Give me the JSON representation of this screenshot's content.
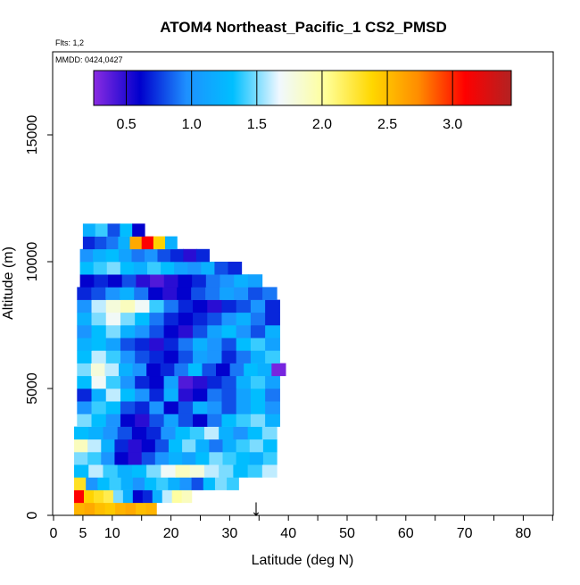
{
  "chart_data": {
    "type": "heatmap",
    "title": "ATOM4 Northeast_Pacific_1 CS2_PMSD",
    "annotations": {
      "flights": "Flts: 1,2",
      "dates": "MMDD: 0424,0427"
    },
    "xlabel": "Latitude (deg N)",
    "ylabel": "Altitude (m)",
    "xlim": [
      0,
      85
    ],
    "ylim": [
      0,
      17500
    ],
    "x_ticks": [
      0,
      5,
      10,
      20,
      30,
      40,
      50,
      60,
      70,
      80
    ],
    "x_minor_ticks": [
      15,
      25,
      35,
      45,
      55,
      65,
      75,
      85
    ],
    "y_ticks": [
      0,
      5000,
      10000,
      15000
    ],
    "colorbar": {
      "range": [
        0.25,
        3.45
      ],
      "ticks": [
        0.5,
        1.0,
        1.5,
        2.0,
        2.5,
        3.0
      ],
      "tick_labels": [
        "0.5",
        "1.0",
        "1.5",
        "2.0",
        "2.5",
        "3.0"
      ],
      "colors": [
        "#8a2be2",
        "#0000cd",
        "#1e90ff",
        "#00bfff",
        "#f0f8ff",
        "#ffff99",
        "#ffd700",
        "#ff8c00",
        "#ff0000",
        "#b22222"
      ]
    },
    "marker": {
      "symbol": "↓",
      "latitude": 34.5
    },
    "layers": [
      {
        "alt": [
          0,
          500
        ],
        "lat": [
          3.5,
          17.5
        ],
        "values": [
          2.55,
          2.6,
          2.5,
          2.45,
          2.55,
          2.6,
          2.5,
          2.55
        ]
      },
      {
        "alt": [
          500,
          1000
        ],
        "lat": [
          3.5,
          23.5
        ],
        "values": [
          3.1,
          2.4,
          2.3,
          2.2,
          1.5,
          1.2,
          0.6,
          0.7,
          1.2,
          1.6,
          2.0,
          1.9
        ]
      },
      {
        "alt": [
          1000,
          1500
        ],
        "lat": [
          3.5,
          31.5
        ],
        "values": [
          2.3,
          1.0,
          1.3,
          1.4,
          1.2,
          1.0,
          1.3,
          1.4,
          1.2,
          1.0,
          0.8,
          1.3,
          1.5,
          1.4
        ]
      },
      {
        "alt": [
          1500,
          2000
        ],
        "lat": [
          3.5,
          38
        ],
        "values": [
          1.3,
          1.6,
          1.4,
          1.2,
          1.3,
          1.5,
          1.7,
          1.9,
          1.8,
          1.6,
          1.5,
          1.3,
          1.4,
          1.6
        ]
      },
      {
        "alt": [
          2000,
          2500
        ],
        "lat": [
          3.5,
          38
        ],
        "values": [
          1.5,
          1.4,
          1.0,
          0.6,
          0.5,
          0.8,
          1.0,
          1.2,
          1.1,
          1.3,
          1.5,
          1.4,
          1.3,
          1.2,
          1.4
        ]
      },
      {
        "alt": [
          2500,
          3000
        ],
        "lat": [
          3.5,
          38
        ],
        "values": [
          1.9,
          1.6,
          1.2,
          0.7,
          0.5,
          0.6,
          0.8,
          1.3,
          1.5,
          1.2,
          0.9,
          1.2,
          1.4,
          1.5,
          1.3
        ]
      },
      {
        "alt": [
          3000,
          3500
        ],
        "lat": [
          3.5,
          38
        ],
        "values": [
          1.3,
          1.2,
          1.0,
          0.8,
          0.6,
          0.7,
          1.0,
          1.3,
          1.4,
          1.6,
          1.2,
          1.0,
          1.3,
          1.5
        ]
      },
      {
        "alt": [
          3500,
          4000
        ],
        "lat": [
          4,
          38.5
        ],
        "values": [
          1.5,
          1.3,
          1.0,
          0.6,
          0.5,
          0.8,
          1.1,
          0.8,
          0.6,
          0.9,
          1.3,
          1.4,
          1.5,
          1.2
        ]
      },
      {
        "alt": [
          4000,
          4500
        ],
        "lat": [
          4,
          38.5
        ],
        "values": [
          1.0,
          1.4,
          1.3,
          0.8,
          0.7,
          1.0,
          0.6,
          0.8,
          1.2,
          1.0,
          0.8,
          1.1,
          1.3,
          1.0
        ]
      },
      {
        "alt": [
          4500,
          5000
        ],
        "lat": [
          4,
          38.5
        ],
        "values": [
          0.7,
          1.2,
          1.6,
          1.3,
          1.0,
          0.7,
          1.2,
          0.5,
          0.6,
          0.9,
          0.8,
          1.1,
          1.3,
          0.9
        ]
      },
      {
        "alt": [
          5000,
          5500
        ],
        "lat": [
          4,
          38.5
        ],
        "values": [
          1.3,
          1.7,
          1.4,
          1.0,
          0.7,
          0.6,
          1.1,
          0.4,
          0.5,
          0.7,
          0.8,
          1.2,
          1.4,
          1.1
        ]
      },
      {
        "alt": [
          5500,
          6000
        ],
        "lat": [
          4,
          39.5
        ],
        "values": [
          1.5,
          1.8,
          1.6,
          1.2,
          1.0,
          0.6,
          0.7,
          0.9,
          1.3,
          0.8,
          0.6,
          0.9,
          1.3,
          1.2,
          0.3
        ]
      },
      {
        "alt": [
          6000,
          6500
        ],
        "lat": [
          4,
          38.5
        ],
        "values": [
          1.3,
          1.6,
          1.4,
          1.0,
          0.8,
          0.7,
          0.6,
          0.8,
          1.1,
          1.0,
          0.7,
          0.9,
          1.2,
          1.4
        ]
      },
      {
        "alt": [
          6500,
          7000
        ],
        "lat": [
          4,
          38.5
        ],
        "values": [
          1.2,
          1.3,
          1.1,
          0.8,
          0.7,
          0.5,
          0.7,
          0.9,
          1.2,
          1.0,
          0.8,
          1.3,
          1.4,
          1.1
        ]
      },
      {
        "alt": [
          7000,
          7500
        ],
        "lat": [
          4,
          38.5
        ],
        "values": [
          1.0,
          1.3,
          1.5,
          1.2,
          1.0,
          0.8,
          0.6,
          0.5,
          0.8,
          1.1,
          1.3,
          1.0,
          0.8,
          1.2
        ]
      },
      {
        "alt": [
          7500,
          8000
        ],
        "lat": [
          4,
          38.5
        ],
        "values": [
          1.2,
          1.5,
          1.7,
          1.5,
          1.3,
          0.9,
          0.7,
          0.6,
          0.7,
          0.8,
          1.0,
          1.2,
          0.9,
          0.7
        ]
      },
      {
        "alt": [
          8000,
          8500
        ],
        "lat": [
          4,
          38.5
        ],
        "values": [
          1.0,
          1.6,
          1.8,
          1.9,
          1.7,
          1.4,
          0.9,
          0.7,
          0.6,
          0.5,
          0.7,
          0.8,
          1.0,
          0.7
        ]
      },
      {
        "alt": [
          8500,
          9000
        ],
        "lat": [
          4,
          38
        ],
        "values": [
          0.7,
          0.8,
          1.0,
          1.2,
          0.9,
          0.6,
          0.5,
          0.6,
          0.8,
          0.9,
          1.1,
          1.0,
          0.8,
          0.9
        ]
      },
      {
        "alt": [
          9000,
          9500
        ],
        "lat": [
          4.5,
          35.5
        ],
        "values": [
          0.6,
          0.7,
          0.6,
          0.8,
          0.5,
          0.4,
          0.5,
          0.6,
          0.7,
          0.9,
          1.0,
          1.2,
          1.1
        ]
      },
      {
        "alt": [
          9500,
          10000
        ],
        "lat": [
          4.5,
          32
        ],
        "values": [
          1.3,
          1.4,
          1.5,
          1.3,
          1.2,
          1.4,
          1.3,
          1.1,
          1.0,
          1.2,
          0.8,
          0.7
        ]
      },
      {
        "alt": [
          10000,
          10500
        ],
        "lat": [
          4.5,
          26.5
        ],
        "values": [
          1.0,
          1.2,
          1.3,
          1.1,
          0.9,
          1.0,
          0.8,
          0.7,
          0.5,
          0.7
        ]
      },
      {
        "alt": [
          10500,
          11000
        ],
        "lat": [
          5,
          21
        ],
        "values": [
          0.7,
          0.8,
          0.9,
          1.2,
          2.6,
          3.1,
          2.4,
          1.2
        ]
      },
      {
        "alt": [
          11000,
          11500
        ],
        "lat": [
          5,
          15.5
        ],
        "values": [
          1.2,
          1.4,
          0.8,
          1.3,
          0.6
        ]
      }
    ]
  }
}
